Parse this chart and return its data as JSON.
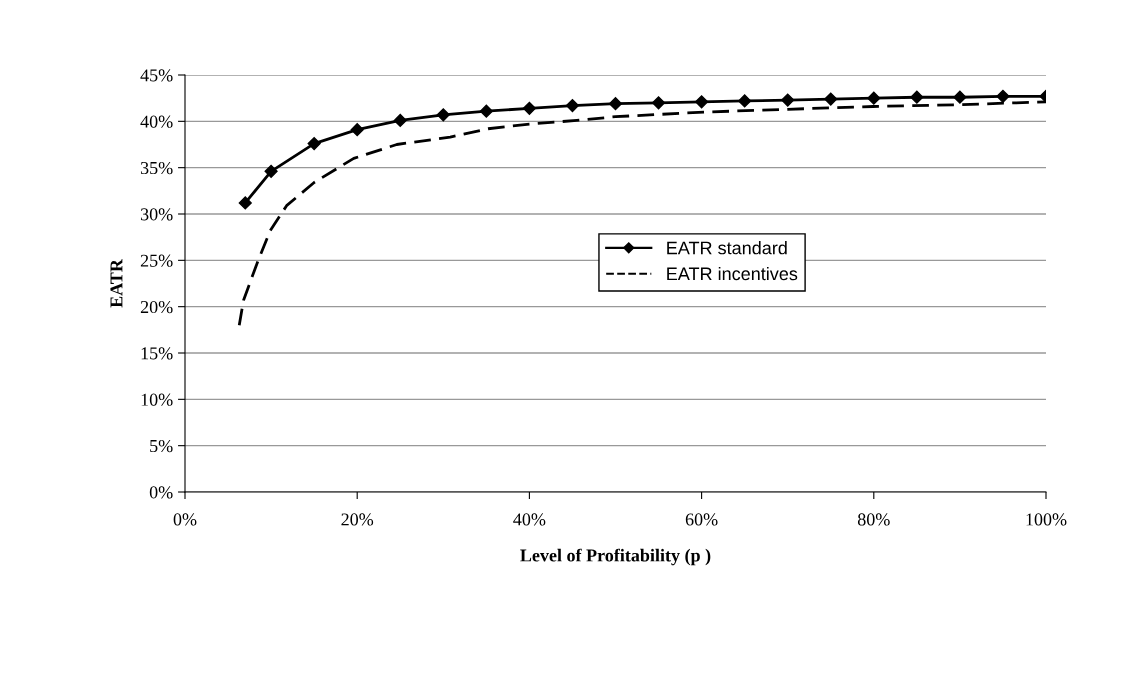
{
  "chart_data": {
    "type": "line",
    "xlabel": "Level of Profitability (p )",
    "ylabel": "EATR",
    "series": [
      {
        "name": "EATR standard",
        "color": "#000000",
        "marker": "diamond",
        "line_style": "solid",
        "x": [
          7,
          10,
          15,
          20,
          25,
          30,
          35,
          40,
          45,
          50,
          55,
          60,
          65,
          70,
          75,
          80,
          85,
          90,
          95,
          100
        ],
        "values": [
          31.2,
          34.6,
          37.6,
          39.1,
          40.1,
          40.7,
          41.1,
          41.4,
          41.7,
          41.9,
          42.0,
          42.1,
          42.2,
          42.3,
          42.4,
          42.5,
          42.6,
          42.6,
          42.7,
          42.7
        ]
      },
      {
        "name": "EATR incentives",
        "color": "#000000",
        "marker": "none",
        "line_style": "dashed",
        "x": [
          6.3,
          6.8,
          8.5,
          9.9,
          11.8,
          15,
          19.6,
          24.6,
          30.8,
          35.2,
          40,
          45.5,
          50,
          60.3,
          70,
          79.9,
          90,
          100
        ],
        "values": [
          18.0,
          20.7,
          25.0,
          28.2,
          30.9,
          33.4,
          36.0,
          37.5,
          38.3,
          39.2,
          39.7,
          40.1,
          40.5,
          41.0,
          41.3,
          41.6,
          41.8,
          42.1
        ]
      }
    ],
    "xlim": [
      0,
      100
    ],
    "xticks": [
      {
        "value": 0,
        "label": "0%"
      },
      {
        "value": 20,
        "label": "20%"
      },
      {
        "value": 40,
        "label": "40%"
      },
      {
        "value": 60,
        "label": "60%"
      },
      {
        "value": 80,
        "label": "80%"
      },
      {
        "value": 100,
        "label": "100%"
      }
    ],
    "ylim": [
      0,
      45
    ],
    "yticks": [
      {
        "value": 0,
        "label": "0%"
      },
      {
        "value": 5,
        "label": "5%"
      },
      {
        "value": 10,
        "label": "10%"
      },
      {
        "value": 15,
        "label": "15%"
      },
      {
        "value": 20,
        "label": "20%"
      },
      {
        "value": 25,
        "label": "25%"
      },
      {
        "value": 30,
        "label": "30%"
      },
      {
        "value": 35,
        "label": "35%"
      },
      {
        "value": 40,
        "label": "40%"
      },
      {
        "value": 45,
        "label": "45%"
      }
    ],
    "grid": "y",
    "legend": "center"
  }
}
